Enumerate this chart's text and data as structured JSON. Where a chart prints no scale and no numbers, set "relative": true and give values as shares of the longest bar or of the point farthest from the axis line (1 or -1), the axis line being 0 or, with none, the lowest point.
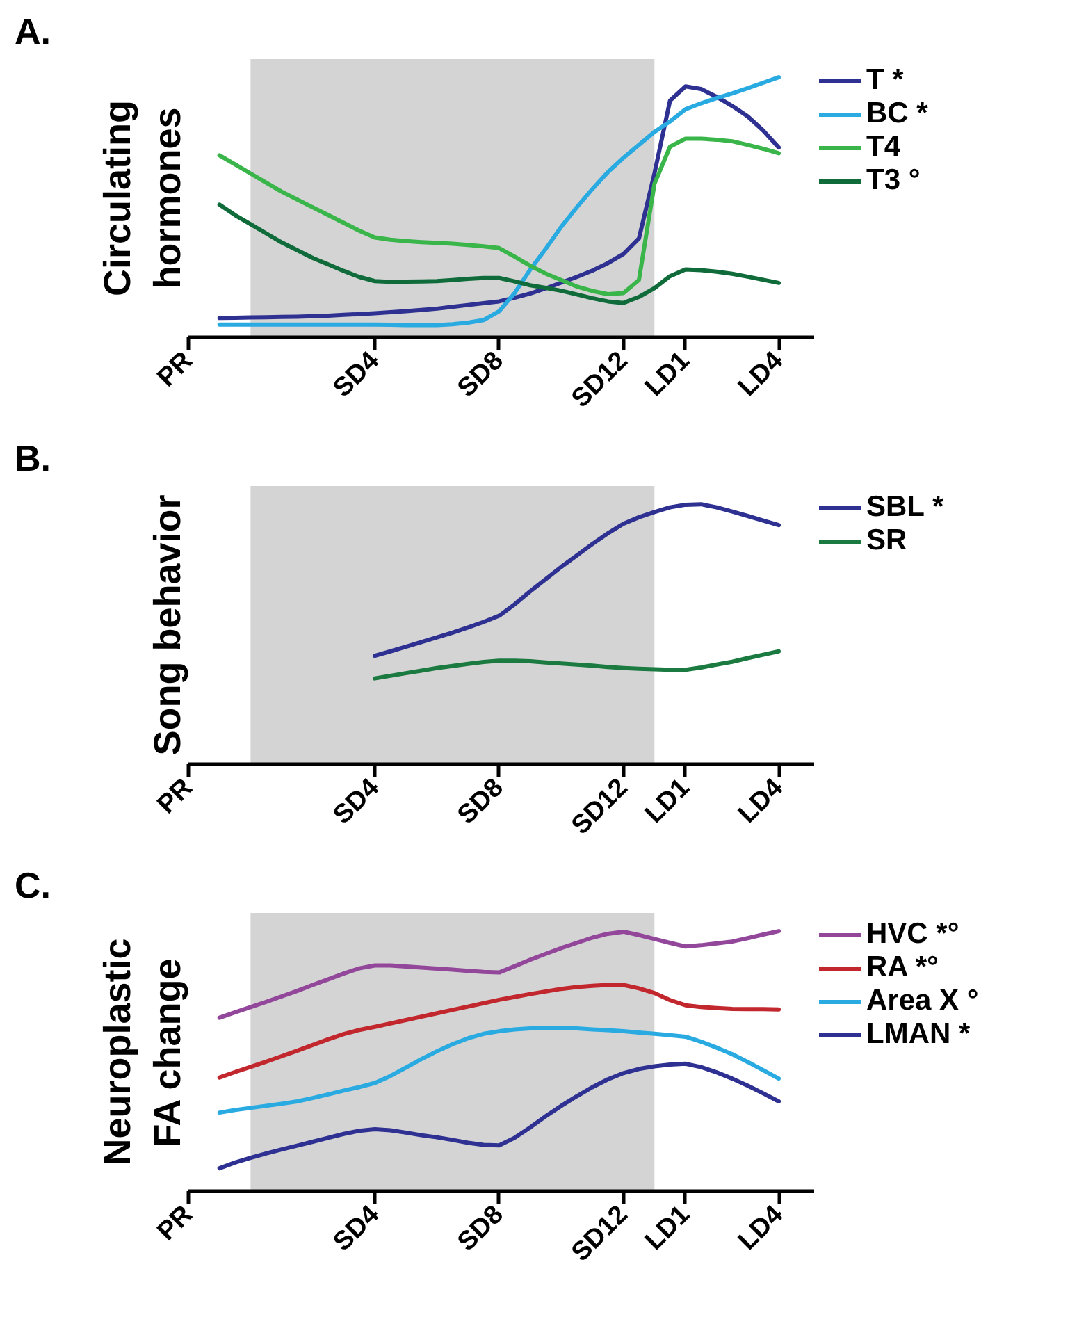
{
  "chart_data": [
    {
      "type": "line",
      "title": "A.",
      "ylabel": "Circulating\nhormones",
      "relative": true,
      "tick_labels": "x",
      "legend": "right",
      "categories": [
        "PR",
        null,
        null,
        null,
        null,
        null,
        null,
        null,
        null,
        null,
        null,
        null,
        "SD4",
        null,
        null,
        null,
        null,
        null,
        null,
        null,
        "SD8",
        null,
        null,
        null,
        null,
        null,
        null,
        null,
        "SD12",
        null,
        null,
        null,
        "LD1",
        null,
        null,
        null,
        null,
        null,
        "LD4"
      ],
      "series": [
        {
          "name": "T *",
          "color": "#2e3192",
          "values": [
            null,
            null,
            0.074,
            0.075,
            0.076,
            0.077,
            0.078,
            0.079,
            0.081,
            0.083,
            0.086,
            0.089,
            0.092,
            0.096,
            0.1,
            0.105,
            0.11,
            0.117,
            0.124,
            0.131,
            0.138,
            0.152,
            0.168,
            0.188,
            0.21,
            0.232,
            0.256,
            0.285,
            0.32,
            0.38,
            0.63,
            0.91,
            0.965,
            0.955,
            0.925,
            0.89,
            0.85,
            0.795,
            0.73
          ]
        },
        {
          "name": "BC *",
          "color": "#29abe2",
          "values": [
            null,
            null,
            0.049,
            0.049,
            0.049,
            0.049,
            0.049,
            0.049,
            0.049,
            0.049,
            0.049,
            0.049,
            0.049,
            0.048,
            0.047,
            0.047,
            0.047,
            0.05,
            0.056,
            0.066,
            0.1,
            0.17,
            0.26,
            0.34,
            0.425,
            0.5,
            0.57,
            0.635,
            0.69,
            0.74,
            0.79,
            0.83,
            0.877,
            0.9,
            0.92,
            0.938,
            0.958,
            0.979,
            1.0
          ]
        },
        {
          "name": "T4",
          "color": "#39b54a",
          "values": [
            null,
            null,
            0.7,
            0.665,
            0.63,
            0.595,
            0.56,
            0.53,
            0.5,
            0.47,
            0.44,
            0.41,
            0.384,
            0.375,
            0.37,
            0.366,
            0.363,
            0.36,
            0.355,
            0.35,
            0.343,
            0.31,
            0.275,
            0.245,
            0.22,
            0.195,
            0.178,
            0.166,
            0.17,
            0.22,
            0.59,
            0.733,
            0.764,
            0.764,
            0.76,
            0.754,
            0.74,
            0.725,
            0.708
          ]
        },
        {
          "name": "T3 °",
          "color": "#0f6b3a",
          "values": [
            null,
            null,
            0.51,
            0.47,
            0.435,
            0.4,
            0.365,
            0.335,
            0.305,
            0.28,
            0.255,
            0.232,
            0.216,
            0.213,
            0.214,
            0.215,
            0.216,
            0.22,
            0.225,
            0.228,
            0.228,
            0.215,
            0.2,
            0.19,
            0.179,
            0.165,
            0.15,
            0.138,
            0.132,
            0.155,
            0.189,
            0.235,
            0.261,
            0.258,
            0.252,
            0.244,
            0.233,
            0.221,
            0.209
          ]
        }
      ]
    },
    {
      "type": "line",
      "title": "B.",
      "ylabel": "Song behavior",
      "relative": true,
      "tick_labels": "x",
      "legend": "right",
      "categories": [
        "PR",
        null,
        null,
        null,
        null,
        null,
        null,
        null,
        null,
        null,
        null,
        null,
        "SD4",
        null,
        null,
        null,
        null,
        null,
        null,
        null,
        "SD8",
        null,
        null,
        null,
        null,
        null,
        null,
        null,
        "SD12",
        null,
        null,
        null,
        "LD1",
        null,
        null,
        null,
        null,
        null,
        "LD4"
      ],
      "series": [
        {
          "name": "SBL *",
          "color": "#2e3192",
          "values": [
            null,
            null,
            null,
            null,
            null,
            null,
            null,
            null,
            null,
            null,
            null,
            null,
            0.417,
            0.434,
            0.452,
            0.47,
            0.488,
            0.506,
            0.526,
            0.547,
            0.571,
            0.615,
            0.665,
            0.712,
            0.759,
            0.803,
            0.847,
            0.888,
            0.925,
            0.95,
            0.97,
            0.988,
            0.998,
            1.0,
            0.988,
            0.972,
            0.955,
            0.937,
            0.92
          ]
        },
        {
          "name": "SR",
          "color": "#1a7a40",
          "values": [
            null,
            null,
            null,
            null,
            null,
            null,
            null,
            null,
            null,
            null,
            null,
            null,
            0.33,
            0.34,
            0.35,
            0.36,
            0.37,
            0.378,
            0.386,
            0.393,
            0.398,
            0.398,
            0.396,
            0.391,
            0.387,
            0.383,
            0.379,
            0.374,
            0.37,
            0.367,
            0.365,
            0.363,
            0.363,
            0.372,
            0.383,
            0.394,
            0.408,
            0.421,
            0.434
          ]
        }
      ]
    },
    {
      "type": "line",
      "title": "C.",
      "ylabel": "Neuroplastic\nFA change",
      "relative": true,
      "tick_labels": "x",
      "legend": "right",
      "categories": [
        "PR",
        null,
        null,
        null,
        null,
        null,
        null,
        null,
        null,
        null,
        null,
        null,
        "SD4",
        null,
        null,
        null,
        null,
        null,
        null,
        null,
        "SD8",
        null,
        null,
        null,
        null,
        null,
        null,
        null,
        "SD12",
        null,
        null,
        null,
        "LD1",
        null,
        null,
        null,
        null,
        null,
        "LD4"
      ],
      "series": [
        {
          "name": "HVC *°",
          "color": "#93479b",
          "values": [
            null,
            null,
            0.667,
            0.688,
            0.708,
            0.728,
            0.749,
            0.77,
            0.793,
            0.815,
            0.837,
            0.857,
            0.868,
            0.868,
            0.864,
            0.86,
            0.856,
            0.852,
            0.847,
            0.843,
            0.841,
            0.865,
            0.89,
            0.913,
            0.935,
            0.955,
            0.975,
            0.99,
            0.998,
            0.985,
            0.97,
            0.955,
            0.941,
            0.946,
            0.953,
            0.96,
            0.973,
            0.987,
            1.0
          ]
        },
        {
          "name": "RA *°",
          "color": "#c1272d",
          "values": [
            null,
            null,
            0.437,
            0.458,
            0.478,
            0.498,
            0.519,
            0.54,
            0.562,
            0.584,
            0.604,
            0.62,
            0.632,
            0.645,
            0.658,
            0.671,
            0.684,
            0.697,
            0.71,
            0.723,
            0.736,
            0.747,
            0.758,
            0.768,
            0.778,
            0.785,
            0.79,
            0.793,
            0.793,
            0.78,
            0.762,
            0.735,
            0.715,
            0.708,
            0.704,
            0.701,
            0.7,
            0.7,
            0.699
          ]
        },
        {
          "name": "Area X °",
          "color": "#29abe2",
          "values": [
            null,
            null,
            0.302,
            0.312,
            0.32,
            0.328,
            0.336,
            0.345,
            0.358,
            0.372,
            0.387,
            0.4,
            0.416,
            0.443,
            0.475,
            0.508,
            0.538,
            0.565,
            0.588,
            0.605,
            0.615,
            0.622,
            0.626,
            0.628,
            0.628,
            0.626,
            0.622,
            0.619,
            0.615,
            0.61,
            0.605,
            0.6,
            0.594,
            0.575,
            0.552,
            0.527,
            0.497,
            0.465,
            0.433
          ]
        },
        {
          "name": "LMAN *",
          "color": "#2e3192",
          "values": [
            null,
            null,
            0.088,
            0.11,
            0.128,
            0.145,
            0.16,
            0.175,
            0.19,
            0.205,
            0.22,
            0.232,
            0.238,
            0.234,
            0.225,
            0.215,
            0.207,
            0.197,
            0.186,
            0.178,
            0.176,
            0.205,
            0.245,
            0.288,
            0.328,
            0.365,
            0.4,
            0.43,
            0.454,
            0.47,
            0.48,
            0.487,
            0.49,
            0.477,
            0.457,
            0.433,
            0.406,
            0.376,
            0.345
          ]
        }
      ]
    }
  ]
}
